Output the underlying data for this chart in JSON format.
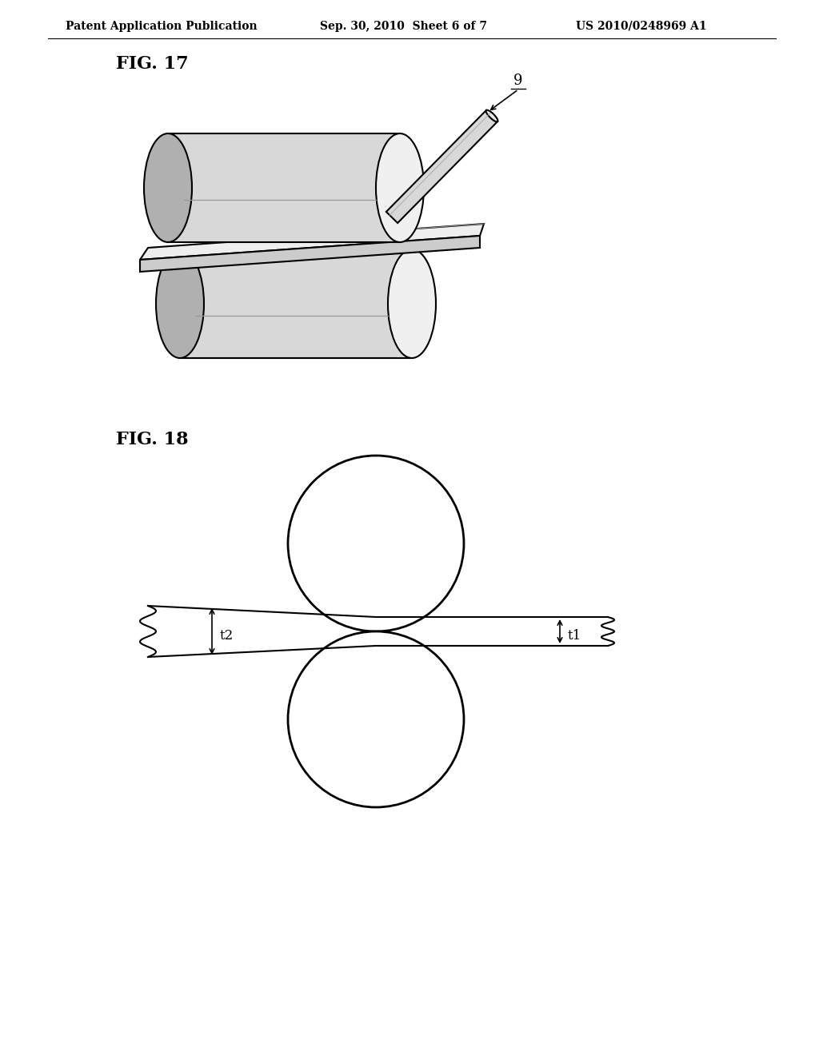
{
  "background_color": "#ffffff",
  "header_left": "Patent Application Publication",
  "header_center": "Sep. 30, 2010  Sheet 6 of 7",
  "header_right": "US 2010/0248969 A1",
  "header_fontsize": 10,
  "fig17_label": "FIG. 17",
  "fig18_label": "FIG. 18",
  "label_fontsize": 16,
  "line_color": "#000000",
  "light_gray": "#e8e8e8",
  "mid_gray": "#c8c8c8",
  "dark_gray": "#a0a0a0"
}
